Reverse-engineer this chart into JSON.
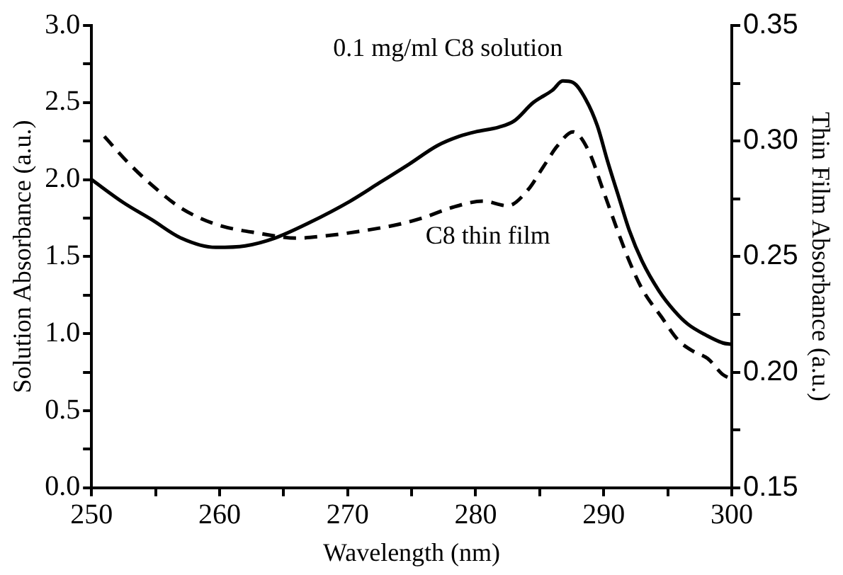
{
  "chart_data": {
    "type": "line",
    "xlabel": "Wavelength (nm)",
    "ylabel": "Solution Absorbance (a.u.)",
    "y2label": "Thin Film Absorbance (a.u.)",
    "xlim": [
      250,
      300
    ],
    "xticks": [
      250,
      {
        "value": 255,
        "label": null
      },
      260,
      {
        "value": 265,
        "label": null
      },
      270,
      {
        "value": 275,
        "label": null
      },
      280,
      {
        "value": 285,
        "label": null
      },
      290,
      {
        "value": 295,
        "label": null
      },
      300
    ],
    "ylim": [
      0,
      3
    ],
    "yticks": [
      "0.0",
      {
        "value": 0.25,
        "label": null
      },
      {
        "value": 0.5,
        "label": "0.5"
      },
      {
        "value": 0.75,
        "label": null
      },
      {
        "value": 1,
        "label": "1.0"
      },
      {
        "value": 1.25,
        "label": null
      },
      {
        "value": 1.5,
        "label": "1.5"
      },
      {
        "value": 1.75,
        "label": null
      },
      {
        "value": 2,
        "label": "2.0"
      },
      {
        "value": 2.25,
        "label": null
      },
      {
        "value": 2.5,
        "label": "2.5"
      },
      {
        "value": 2.75,
        "label": null
      },
      {
        "value": 3,
        "label": "3.0"
      }
    ],
    "y2lim": [
      0.15,
      0.35
    ],
    "y2ticks": [
      {
        "value": 0.15,
        "label": "0.15"
      },
      {
        "value": 0.175,
        "label": null
      },
      {
        "value": 0.2,
        "label": "0.20"
      },
      {
        "value": 0.225,
        "label": null
      },
      {
        "value": 0.25,
        "label": "0.25"
      },
      {
        "value": 0.275,
        "label": null
      },
      {
        "value": 0.3,
        "label": "0.30"
      },
      {
        "value": 0.325,
        "label": null
      },
      {
        "value": 0.35,
        "label": "0.35"
      }
    ],
    "grid": false,
    "legend": false,
    "marker": "none",
    "series": [
      {
        "name": "0.1 mg/ml C8 solution",
        "color": "#000000",
        "line_style": "solid",
        "x": [
          250,
          252.5,
          254.7,
          257,
          259.7,
          262,
          264.3,
          267,
          270.2,
          272.5,
          274.8,
          277,
          278.7,
          280,
          281.8,
          283,
          284.5,
          286,
          286.8,
          287.6,
          288.6,
          289.5,
          290.3,
          291.2,
          292,
          293,
          294.3,
          295.5,
          296.6,
          298,
          299.3,
          300
        ],
        "values": [
          2.0,
          1.85,
          1.74,
          1.62,
          1.56,
          1.57,
          1.62,
          1.72,
          1.86,
          1.98,
          2.1,
          2.22,
          2.28,
          2.31,
          2.34,
          2.38,
          2.5,
          2.58,
          2.64,
          2.63,
          2.52,
          2.35,
          2.12,
          1.88,
          1.67,
          1.47,
          1.28,
          1.15,
          1.06,
          0.99,
          0.94,
          0.93
        ]
      },
      {
        "name": "C8 thin film",
        "color": "#000000",
        "line_style": "dashed",
        "axis": "y2",
        "x": [
          251,
          252.8,
          254.7,
          257,
          259.7,
          263.2,
          266,
          268.3,
          271,
          274,
          276,
          278,
          280.6,
          282.5,
          284.1,
          285.3,
          286.4,
          287.6,
          288.8,
          290,
          291.1,
          292,
          293,
          294.5,
          295.8,
          297,
          298.1,
          299.3,
          300
        ],
        "values": [
          0.302,
          0.291,
          0.281,
          0.271,
          0.264,
          0.26,
          0.258,
          0.259,
          0.261,
          0.264,
          0.267,
          0.271,
          0.274,
          0.272,
          0.279,
          0.289,
          0.298,
          0.304,
          0.296,
          0.278,
          0.261,
          0.248,
          0.236,
          0.224,
          0.214,
          0.209,
          0.206,
          0.199,
          0.197
        ]
      }
    ]
  }
}
